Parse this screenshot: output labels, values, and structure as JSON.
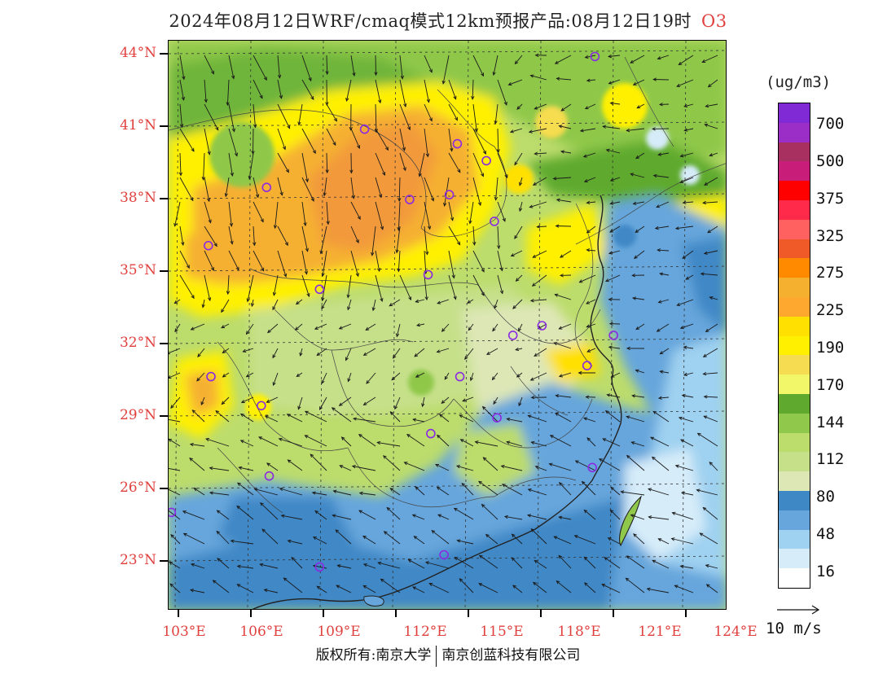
{
  "title": {
    "text": "2024年08月12日WRF/cmaq模式12km预报产品:08月12日19时",
    "pollutant": "O3"
  },
  "map": {
    "lat_labels": [
      "44°N",
      "41°N",
      "38°N",
      "35°N",
      "32°N",
      "29°N",
      "26°N",
      "23°N"
    ],
    "lon_labels": [
      "103°E",
      "106°E",
      "109°E",
      "112°E",
      "115°E",
      "118°E",
      "121°E",
      "124°E"
    ],
    "extent": {
      "lon_min": 102.9,
      "lon_max": 124.0,
      "lat_min": 21.0,
      "lat_max": 44.5
    },
    "stations": [
      {
        "lon": 119.0,
        "lat": 43.85
      },
      {
        "lon": 110.3,
        "lat": 40.85
      },
      {
        "lon": 113.8,
        "lat": 40.25
      },
      {
        "lon": 114.9,
        "lat": 39.55
      },
      {
        "lon": 106.6,
        "lat": 38.45
      },
      {
        "lon": 112.0,
        "lat": 37.95
      },
      {
        "lon": 113.5,
        "lat": 38.15
      },
      {
        "lon": 115.2,
        "lat": 37.05
      },
      {
        "lon": 104.4,
        "lat": 36.05
      },
      {
        "lon": 112.7,
        "lat": 34.85
      },
      {
        "lon": 108.6,
        "lat": 34.25
      },
      {
        "lon": 117.0,
        "lat": 32.75
      },
      {
        "lon": 115.9,
        "lat": 32.35
      },
      {
        "lon": 119.7,
        "lat": 32.35
      },
      {
        "lon": 118.7,
        "lat": 31.1
      },
      {
        "lon": 104.5,
        "lat": 30.65
      },
      {
        "lon": 113.9,
        "lat": 30.65
      },
      {
        "lon": 106.4,
        "lat": 29.45
      },
      {
        "lon": 115.3,
        "lat": 28.95
      },
      {
        "lon": 112.8,
        "lat": 28.3
      },
      {
        "lon": 106.7,
        "lat": 26.55
      },
      {
        "lon": 118.9,
        "lat": 26.9
      },
      {
        "lon": 103.0,
        "lat": 25.05
      },
      {
        "lon": 113.3,
        "lat": 23.3
      },
      {
        "lon": 108.6,
        "lat": 22.8
      }
    ]
  },
  "legend": {
    "unit": "(ug/m3)",
    "labels": [
      "700",
      "500",
      "375",
      "325",
      "275",
      "225",
      "190",
      "170",
      "144",
      "112",
      "80",
      "48",
      "16"
    ],
    "colors": [
      "#7f2ad4",
      "#9a2ec7",
      "#a83060",
      "#c81e7a",
      "#ff0000",
      "#ff2a4a",
      "#ff6060",
      "#ef5a28",
      "#ff8a00",
      "#f5b030",
      "#ffa830",
      "#ffe000",
      "#fff000",
      "#f6dc50",
      "#f2f76a",
      "#5faa2e",
      "#8fc84a",
      "#bcdc6c",
      "#c6e08a",
      "#dde7b6",
      "#3f88c6",
      "#66a6dc",
      "#9fd1f0",
      "#d6ecf9",
      "#ffffff"
    ]
  },
  "wind_reference": {
    "label": "10 m/s"
  },
  "copyright": {
    "part1": "版权所有:南京大学",
    "part2": "南京创蓝科技有限公司"
  }
}
